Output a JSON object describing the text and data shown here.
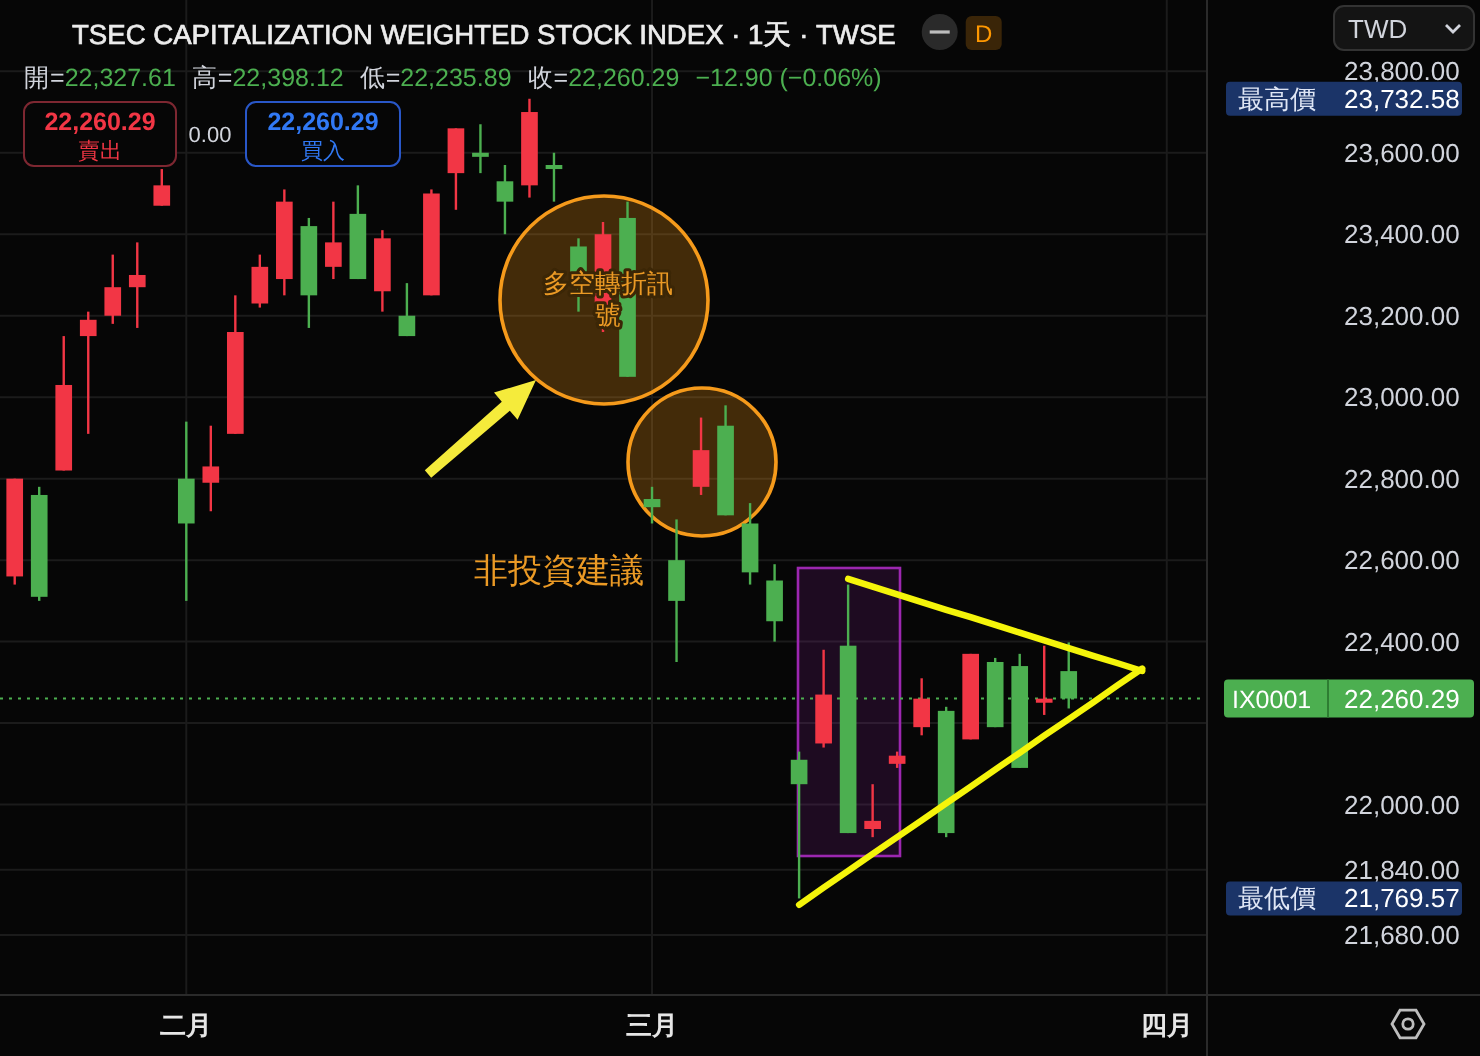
{
  "chart_data": {
    "type": "candlestick",
    "title": "TSEC CAPITALIZATION WEIGHTED STOCK INDEX · 1天 · TWSE",
    "ylabel": "TWD",
    "categories": [
      null,
      null,
      null,
      null,
      null,
      null,
      null,
      "二月",
      null,
      null,
      null,
      null,
      null,
      null,
      null,
      null,
      null,
      null,
      null,
      null,
      null,
      null,
      null,
      null,
      null,
      null,
      "三月",
      null,
      null,
      null,
      null,
      null,
      null,
      null,
      null,
      null,
      null,
      null,
      null,
      null,
      null,
      null,
      null,
      null,
      null,
      null,
      null,
      "四月",
      null
    ],
    "ohlc": [
      [
        22560,
        22800,
        22540,
        22800
      ],
      [
        22760,
        22780,
        22500,
        22510
      ],
      [
        22820,
        23150,
        22820,
        23030
      ],
      [
        23150,
        23210,
        22910,
        23190
      ],
      [
        23200,
        23350,
        23180,
        23270
      ],
      [
        23270,
        23380,
        23170,
        23300
      ],
      [
        23470,
        23560,
        23470,
        23520
      ],
      [
        22800,
        22940,
        22500,
        22690
      ],
      [
        22790,
        22930,
        22720,
        22830
      ],
      [
        22910,
        23250,
        22910,
        23160
      ],
      [
        23230,
        23350,
        23220,
        23320
      ],
      [
        23290,
        23510,
        23250,
        23480
      ],
      [
        23420,
        23440,
        23170,
        23250
      ],
      [
        23320,
        23480,
        23290,
        23380
      ],
      [
        23450,
        23520,
        23290,
        23290
      ],
      [
        23260,
        23410,
        23210,
        23390
      ],
      [
        23200,
        23280,
        23150,
        23150
      ],
      [
        23250,
        23510,
        23250,
        23500
      ],
      [
        23550,
        23660,
        23460,
        23660
      ],
      [
        23600,
        23670,
        23550,
        23590
      ],
      [
        23530,
        23570,
        23400,
        23480
      ],
      [
        23520,
        23732.58,
        23490,
        23700
      ],
      [
        23570,
        23600,
        23480,
        23560
      ],
      [
        23370,
        23390,
        23210,
        23280
      ],
      [
        23220,
        23430,
        23160,
        23400
      ],
      [
        23440,
        23480,
        23050,
        23050
      ],
      [
        22750,
        22780,
        22690,
        22730
      ],
      [
        22600,
        22700,
        22350,
        22500
      ],
      [
        22780,
        22950,
        22760,
        22870
      ],
      [
        22930,
        22980,
        22710,
        22710
      ],
      [
        22690,
        22740,
        22540,
        22570
      ],
      [
        22550,
        22590,
        22400,
        22450
      ],
      [
        22110,
        22130,
        21769.57,
        22050
      ],
      [
        22150,
        22380,
        22140,
        22270
      ],
      [
        22390,
        22540,
        21930,
        21930
      ],
      [
        21940,
        22050,
        21920,
        21960
      ],
      [
        22100,
        22130,
        22090,
        22120
      ],
      [
        22190,
        22310,
        22170,
        22260
      ],
      [
        22230,
        22240,
        21920,
        21930
      ],
      [
        22160,
        22370,
        22160,
        22370
      ],
      [
        22350,
        22360,
        22190,
        22190
      ],
      [
        22340,
        22370,
        22090,
        22090
      ],
      [
        22250,
        22390,
        22220,
        22260
      ],
      [
        22327.61,
        22398.12,
        22235.89,
        22260.29
      ],
      null,
      null,
      null,
      null,
      null
    ],
    "colors": [
      "#f23645",
      "#4caf50",
      "#f23645",
      "#f23645",
      "#f23645",
      "#f23645",
      "#f23645",
      "#4caf50",
      "#f23645",
      "#f23645",
      "#f23645",
      "#f23645",
      "#4caf50",
      "#f23645",
      "#4caf50",
      "#f23645",
      "#4caf50",
      "#f23645",
      "#f23645",
      "#4caf50",
      "#4caf50",
      "#f23645",
      "#4caf50",
      "#4caf50",
      "#f23645",
      "#4caf50",
      "#4caf50",
      "#4caf50",
      "#f23645",
      "#4caf50",
      "#4caf50",
      "#4caf50",
      "#4caf50",
      "#f23645",
      "#4caf50",
      "#f23645",
      "#f23645",
      "#f23645",
      "#4caf50",
      "#f23645",
      "#4caf50",
      "#4caf50",
      "#f23645",
      "#4caf50",
      null,
      null,
      null,
      null,
      null
    ],
    "ylim": [
      21535,
      23975
    ],
    "yticks": [
      {
        "value": 21680,
        "label": "21,680.00"
      },
      {
        "value": 21840,
        "label": "21,840.00"
      },
      {
        "value": 22000,
        "label": "22,000.00"
      },
      {
        "value": 22200,
        "label": null
      },
      {
        "value": 22400,
        "label": "22,400.00"
      },
      {
        "value": 22600,
        "label": "22,600.00"
      },
      {
        "value": 22800,
        "label": "22,800.00"
      },
      {
        "value": 23000,
        "label": "23,000.00"
      },
      {
        "value": 23200,
        "label": "23,200.00"
      },
      {
        "value": 23400,
        "label": "23,400.00"
      },
      {
        "value": 23600,
        "label": "23,600.00"
      },
      {
        "value": 23800,
        "label": "23,800.00"
      }
    ],
    "grid": true,
    "series": [
      {
        "type": "line",
        "color": "#f5f50a",
        "values": [
          null,
          null,
          null,
          null,
          null,
          null,
          null,
          null,
          null,
          null,
          null,
          null,
          null,
          null,
          null,
          null,
          null,
          null,
          null,
          null,
          null,
          null,
          null,
          null,
          null,
          null,
          null,
          null,
          null,
          null,
          null,
          null,
          null,
          null,
          22554,
          22535,
          22516,
          22497,
          22478,
          22460,
          22441,
          22422,
          22403,
          22384,
          22365,
          22347,
          22328,
          null,
          null
        ]
      },
      {
        "type": "line",
        "color": "#f5f50a",
        "values": [
          null,
          null,
          null,
          null,
          null,
          null,
          null,
          null,
          null,
          null,
          null,
          null,
          null,
          null,
          null,
          null,
          null,
          null,
          null,
          null,
          null,
          null,
          null,
          null,
          null,
          null,
          null,
          null,
          null,
          null,
          null,
          null,
          21754,
          21796,
          21837,
          21879,
          21920,
          21961,
          22003,
          22044,
          22086,
          22127,
          22169,
          22210,
          22251,
          22293,
          22334,
          null,
          null
        ]
      }
    ],
    "ref_lines": [
      {
        "axis": "y",
        "value": 22260.29,
        "label": "IX0001",
        "color": "#4caf50",
        "line_style": "dotted"
      }
    ],
    "annotations": [
      "開=22,327.61",
      "高=22,398.12",
      "低=22,235.89",
      "收=22,260.29",
      "−12.90 (−0.06%)",
      "22,260.29",
      "賣出",
      "0.00",
      "22,260.29",
      "買入",
      "D",
      "多空轉折訊號",
      "非投資建議",
      "最高價",
      "23,732.58",
      "最低價",
      "21,769.57"
    ]
  }
}
